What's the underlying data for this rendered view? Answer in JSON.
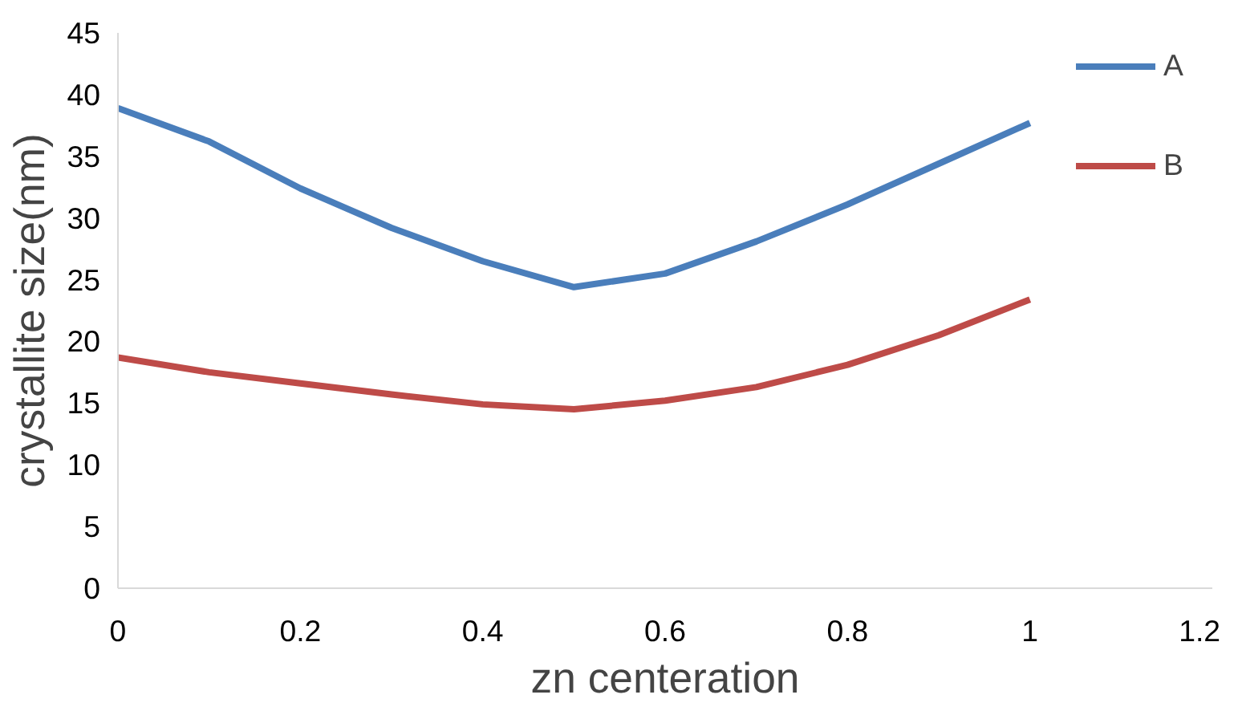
{
  "chart_data": {
    "type": "line",
    "xlabel": "zn centeration",
    "ylabel": "crystallite size(nm)",
    "x": [
      0,
      0.1,
      0.2,
      0.3,
      0.4,
      0.5,
      0.6,
      0.7,
      0.8,
      0.9,
      1
    ],
    "series": [
      {
        "name": "A",
        "color": "#4a7ebb",
        "values": [
          38.9,
          36.2,
          32.4,
          29.2,
          26.5,
          24.4,
          25.5,
          28.1,
          31.1,
          34.4,
          37.7
        ]
      },
      {
        "name": "B",
        "color": "#be4b48",
        "values": [
          18.7,
          17.5,
          16.6,
          15.7,
          14.9,
          14.5,
          15.2,
          16.3,
          18.1,
          20.5,
          23.4
        ]
      }
    ],
    "xlim": [
      0,
      1.2
    ],
    "xticks": [
      0,
      0.2,
      0.4,
      0.6,
      0.8,
      1,
      1.2
    ],
    "ylim": [
      0,
      45
    ],
    "yticks": [
      0,
      5,
      10,
      15,
      20,
      25,
      30,
      35,
      40,
      45
    ],
    "grid": false,
    "legend": "top right",
    "marker": "none",
    "line_style": "solid"
  }
}
